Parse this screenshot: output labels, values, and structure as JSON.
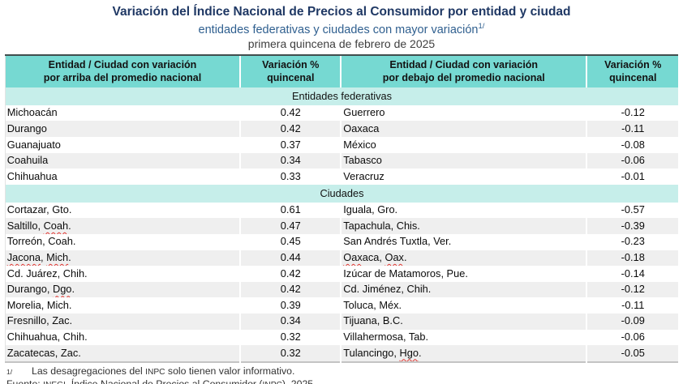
{
  "page": {
    "title": "Variación del Índice Nacional de Precios al Consumidor por entidad y ciudad",
    "subtitle": "entidades federativas y ciudades con mayor variación",
    "subtitle_superscript": "1/",
    "period": "primera quincena de febrero de 2025"
  },
  "table": {
    "headers": [
      {
        "line1": "Entidad / Ciudad con variación",
        "line2": "por arriba del promedio nacional"
      },
      {
        "line1": "Variación %",
        "line2": "quincenal"
      },
      {
        "line1": "Entidad / Ciudad con variación",
        "line2": "por debajo del promedio nacional"
      },
      {
        "line1": "Variación %",
        "line2": "quincenal"
      }
    ],
    "sections": [
      {
        "label": "Entidades federativas",
        "rows": [
          {
            "left_name": "Michoacán",
            "left_value": "0.42",
            "right_name": "Guerrero",
            "right_value": "-0.12"
          },
          {
            "left_name": "Durango",
            "left_value": "0.42",
            "right_name": "Oaxaca",
            "right_value": "-0.11"
          },
          {
            "left_name": "Guanajuato",
            "left_value": "0.37",
            "right_name": "México",
            "right_value": "-0.08"
          },
          {
            "left_name": "Coahuila",
            "left_value": "0.34",
            "right_name": "Tabasco",
            "right_value": "-0.06"
          },
          {
            "left_name": "Chihuahua",
            "left_value": "0.33",
            "right_name": "Veracruz",
            "right_value": "-0.01"
          }
        ]
      },
      {
        "label": "Ciudades",
        "rows": [
          {
            "left_name": "Cortazar, Gto.",
            "left_value": "0.61",
            "right_name": "Iguala, Gro.",
            "right_value": "-0.57"
          },
          {
            "left_name": "Saltillo, Coah.",
            "left_misspelled": [
              "Coah"
            ],
            "left_value": "0.47",
            "right_name": "Tapachula, Chis.",
            "right_value": "-0.39"
          },
          {
            "left_name": "Torreón, Coah.",
            "left_value": "0.45",
            "right_name": "San Andrés Tuxtla, Ver.",
            "right_value": "-0.23"
          },
          {
            "left_name": "Jacona, Mich.",
            "left_misspelled": [
              "Jacona",
              "Mich"
            ],
            "left_value": "0.44",
            "right_name": "Oaxaca, Oax.",
            "right_misspelled": [
              "Oax"
            ],
            "right_value": "-0.18"
          },
          {
            "left_name": "Cd. Juárez, Chih.",
            "left_value": "0.42",
            "right_name": "Izúcar de Matamoros, Pue.",
            "right_value": "-0.14"
          },
          {
            "left_name": "Durango, Dgo.",
            "left_misspelled": [
              "Dgo"
            ],
            "left_value": "0.42",
            "right_name": "Cd. Jiménez, Chih.",
            "right_value": "-0.12"
          },
          {
            "left_name": "Morelia, Mich.",
            "left_value": "0.39",
            "right_name": "Toluca, Méx.",
            "right_value": "-0.11"
          },
          {
            "left_name": "Fresnillo, Zac.",
            "left_value": "0.34",
            "right_name": "Tijuana, B.C.",
            "right_value": "-0.09"
          },
          {
            "left_name": "Chihuahua, Chih.",
            "left_value": "0.32",
            "right_name": "Villahermosa, Tab.",
            "right_value": "-0.06"
          },
          {
            "left_name": "Zacatecas, Zac.",
            "left_value": "0.32",
            "right_name": "Tulancingo, Hgo.",
            "right_misspelled": [
              "Hgo"
            ],
            "right_value": "-0.05"
          }
        ]
      }
    ]
  },
  "footnotes": {
    "marker": "1/",
    "note": "Las desagregaciones del INPC solo tienen valor informativo.",
    "source": "Fuente: INEGI. Índice Nacional de Precios al Consumidor (INPC), 2025.",
    "smallcaps_tokens": [
      "INPC",
      "INEGI"
    ]
  },
  "colors": {
    "title_text": "#1F3864",
    "subtitle_text": "#2F5F8F",
    "header_background": "#76D9D2",
    "header_top_border": "#414E4E",
    "section_band_background": "#C6EEEA",
    "alt_row_background": "#EFEFEF",
    "spellcheck_underline": "#E0342F"
  }
}
